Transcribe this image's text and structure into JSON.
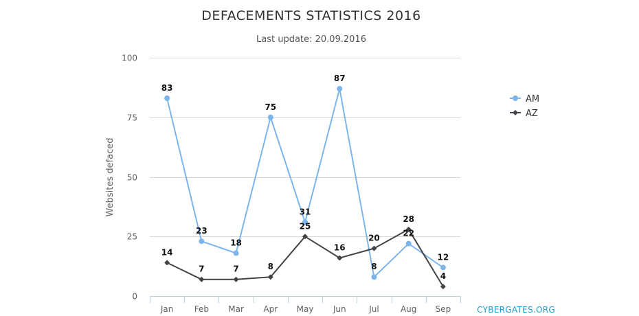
{
  "chart_data": {
    "type": "line",
    "title": "DEFACEMENTS STATISTICS 2016",
    "subtitle": "Last update: 20.09.2016",
    "xlabel": "",
    "ylabel": "Websites defaced",
    "ylim": [
      0,
      100
    ],
    "yticks": [
      0,
      25,
      50,
      75,
      100
    ],
    "categories": [
      "Jan",
      "Feb",
      "Mar",
      "Apr",
      "May",
      "Jun",
      "Jul",
      "Aug",
      "Sep"
    ],
    "series": [
      {
        "name": "AM",
        "marker": "circle",
        "color": "#7cb5ec",
        "values": [
          83,
          23,
          18,
          75,
          31,
          87,
          8,
          22,
          12
        ]
      },
      {
        "name": "AZ",
        "marker": "diamond",
        "color": "#434348",
        "values": [
          14,
          7,
          7,
          8,
          25,
          16,
          20,
          28,
          4
        ]
      }
    ],
    "legend_position": "right",
    "grid": true
  },
  "credit": "CYBERGATES.ORG"
}
